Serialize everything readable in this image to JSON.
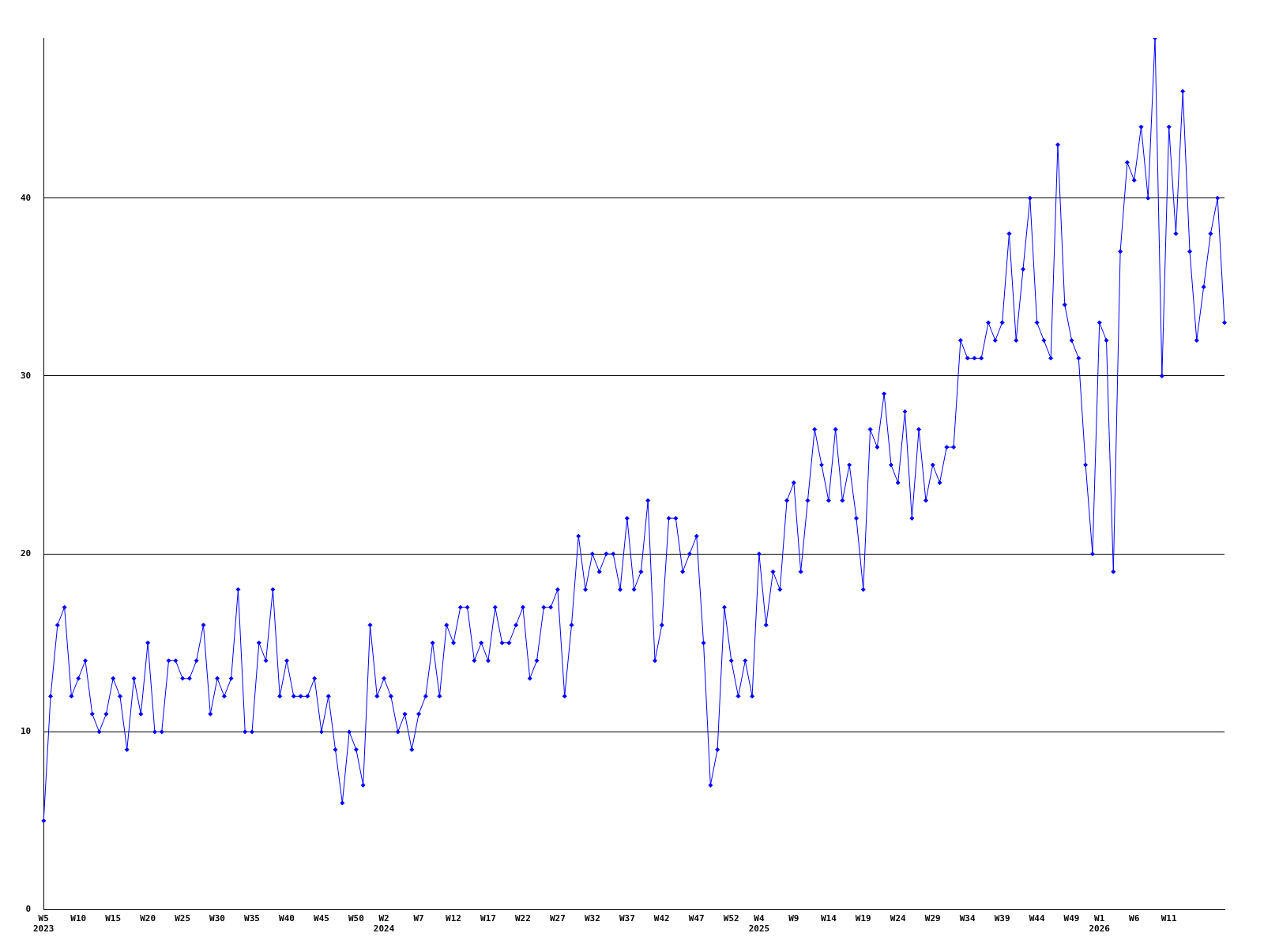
{
  "chart_data": {
    "type": "line",
    "categories": [
      "W5\n2023",
      null,
      null,
      null,
      null,
      "W10",
      null,
      null,
      null,
      null,
      "W15",
      null,
      null,
      null,
      null,
      "W20",
      null,
      null,
      null,
      null,
      "W25",
      null,
      null,
      null,
      null,
      "W30",
      null,
      null,
      null,
      null,
      "W35",
      null,
      null,
      null,
      null,
      "W40",
      null,
      null,
      null,
      null,
      "W45",
      null,
      null,
      null,
      null,
      "W50",
      null,
      null,
      null,
      "W2\n2024",
      null,
      null,
      null,
      null,
      "W7",
      null,
      null,
      null,
      null,
      "W12",
      null,
      null,
      null,
      null,
      "W17",
      null,
      null,
      null,
      null,
      "W22",
      null,
      null,
      null,
      null,
      "W27",
      null,
      null,
      null,
      null,
      "W32",
      null,
      null,
      null,
      null,
      "W37",
      null,
      null,
      null,
      null,
      "W42",
      null,
      null,
      null,
      null,
      "W47",
      null,
      null,
      null,
      null,
      "W52",
      null,
      null,
      null,
      "W4\n2025",
      null,
      null,
      null,
      null,
      "W9",
      null,
      null,
      null,
      null,
      "W14",
      null,
      null,
      null,
      null,
      "W19",
      null,
      null,
      null,
      null,
      "W24",
      null,
      null,
      null,
      null,
      "W29",
      null,
      null,
      null,
      null,
      "W34",
      null,
      null,
      null,
      null,
      "W39",
      null,
      null,
      null,
      null,
      "W44",
      null,
      null,
      null,
      null,
      "W49",
      null,
      null,
      null,
      "W1\n2026",
      null,
      null,
      null,
      null,
      "W6",
      null,
      null,
      null,
      null,
      "W11",
      null,
      null,
      null,
      null,
      null,
      null,
      null,
      null
    ],
    "series": [
      {
        "color": "#0000ff",
        "values": [
          5,
          12,
          16,
          17,
          12,
          13,
          14,
          11,
          10,
          11,
          13,
          12,
          9,
          13,
          11,
          15,
          10,
          10,
          14,
          14,
          13,
          13,
          14,
          16,
          11,
          13,
          12,
          13,
          18,
          10,
          10,
          15,
          14,
          18,
          12,
          14,
          12,
          12,
          12,
          13,
          10,
          12,
          9,
          6,
          10,
          9,
          7,
          16,
          12,
          13,
          12,
          10,
          11,
          9,
          11,
          12,
          15,
          12,
          16,
          15,
          17,
          17,
          14,
          15,
          14,
          17,
          15,
          15,
          16,
          17,
          13,
          14,
          17,
          17,
          18,
          12,
          16,
          21,
          18,
          20,
          19,
          20,
          20,
          18,
          22,
          18,
          19,
          23,
          14,
          16,
          22,
          22,
          19,
          20,
          21,
          15,
          7,
          9,
          17,
          14,
          12,
          14,
          12,
          20,
          16,
          19,
          18,
          23,
          24,
          19,
          23,
          27,
          25,
          23,
          27,
          23,
          25,
          22,
          18,
          27,
          26,
          29,
          25,
          24,
          28,
          22,
          27,
          23,
          25,
          24,
          26,
          26,
          32,
          31,
          31,
          31,
          33,
          32,
          33,
          38,
          32,
          36,
          40,
          33,
          32,
          31,
          43,
          34,
          32,
          31,
          25,
          20,
          33,
          32,
          19,
          37,
          42,
          41,
          44,
          40,
          49,
          30,
          44,
          38,
          46,
          37,
          32,
          35,
          38,
          40,
          33
        ]
      }
    ],
    "ylim": [
      0,
      49
    ],
    "yticks": [
      0,
      10,
      20,
      30,
      40
    ],
    "grid": "y",
    "marker": "diamond",
    "line_style": "solid"
  }
}
